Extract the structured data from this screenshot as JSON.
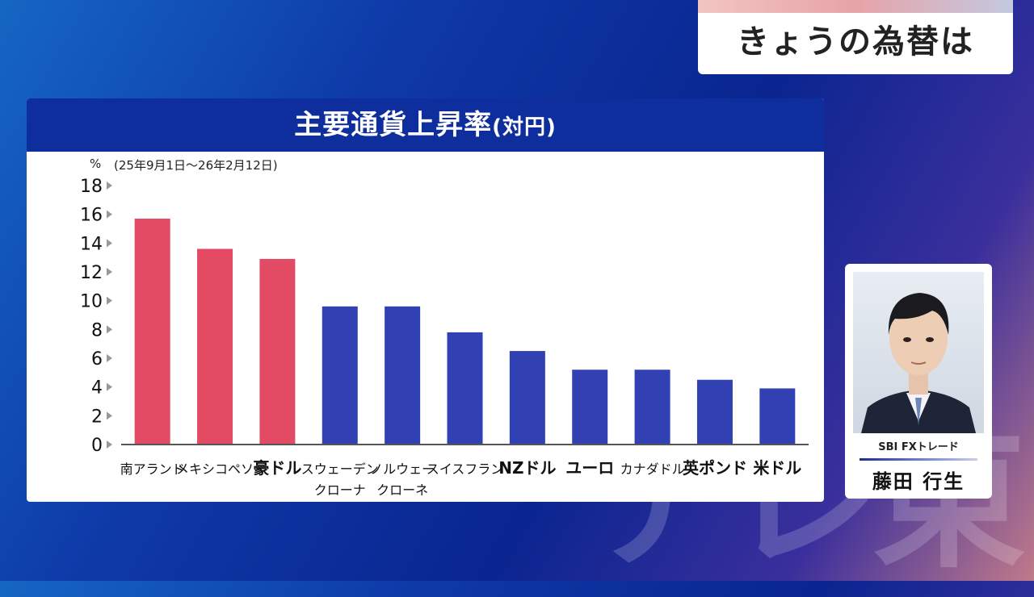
{
  "watermark": "テレ東",
  "segment_title": "きょうの為替は",
  "chart_data": {
    "type": "bar",
    "title": "主要通貨上昇率",
    "title_suffix": "(対円)",
    "unit": "%",
    "period": "(25年9月1日〜26年2月12日)",
    "categories": [
      [
        "南アランド"
      ],
      [
        "メキシコペソ"
      ],
      [
        "豪ドル"
      ],
      [
        "スウェーデン",
        "クローナ"
      ],
      [
        "ノルウェー",
        "クローネ"
      ],
      [
        "スイスフラン"
      ],
      [
        "NZドル"
      ],
      [
        "ユーロ"
      ],
      [
        "カナダドル"
      ],
      [
        "英ポンド"
      ],
      [
        "米ドル"
      ]
    ],
    "values": [
      15.7,
      13.6,
      12.9,
      9.6,
      9.6,
      7.8,
      6.5,
      5.2,
      5.2,
      4.5,
      3.9
    ],
    "ylim": [
      0,
      18
    ],
    "yticks": [
      "0",
      "2",
      "4",
      "6",
      "8",
      "10",
      "12",
      "14",
      "16",
      "18"
    ],
    "highlight_color": "#e34a64",
    "bar_color": "#3141b3"
  },
  "presenter": {
    "company": "SBI FXトレード",
    "name": "藤田 行生"
  }
}
